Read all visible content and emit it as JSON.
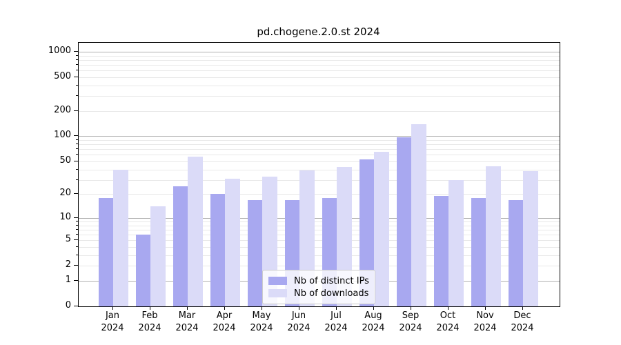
{
  "title": "pd.chogene.2.0.st 2024",
  "chart_data": {
    "type": "bar",
    "title": "pd.chogene.2.0.st 2024",
    "scale": "log1p",
    "categories": [
      "Jan",
      "Feb",
      "Mar",
      "Apr",
      "May",
      "Jun",
      "Jul",
      "Aug",
      "Sep",
      "Oct",
      "Nov",
      "Dec"
    ],
    "year_label": "2024",
    "series": [
      {
        "name": "Nb of distinct IPs",
        "color": "#a8a8f0",
        "values": [
          18,
          6,
          25,
          20,
          17,
          17,
          18,
          53,
          97,
          19,
          18,
          17
        ]
      },
      {
        "name": "Nb of downloads",
        "color": "#dbdbf8",
        "values": [
          40,
          14,
          57,
          31,
          33,
          39,
          43,
          65,
          140,
          30,
          44,
          38
        ]
      }
    ],
    "yticks": [
      0,
      1,
      2,
      5,
      10,
      20,
      50,
      100,
      200,
      500,
      1000
    ],
    "major_gridline_values": [
      1,
      10,
      100,
      1000
    ],
    "ylim": [
      0,
      1275
    ],
    "xlabel": "",
    "ylabel": "",
    "grid": true,
    "legend_position": "bottom-center"
  },
  "colors": {
    "background": "#ffffff",
    "axis": "#000000",
    "grid_major": "#b0b0b0",
    "grid_minor": "#e8e8e8",
    "series_ips": "#a8a8f0",
    "series_downloads": "#dbdbf8",
    "legend_border": "#cccccc"
  }
}
